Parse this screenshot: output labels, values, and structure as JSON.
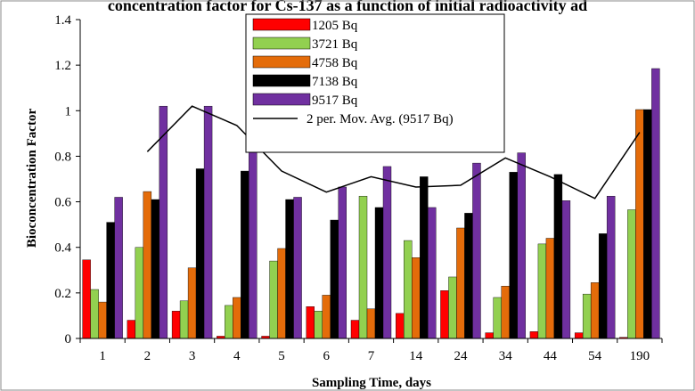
{
  "chart_data": {
    "type": "bar",
    "title": "concentration factor for Cs-137 as a function of initial radioactivity ad",
    "xlabel": "Sampling Time, days",
    "ylabel": "Bioconcentration Factor",
    "ylim": [
      0,
      1.4
    ],
    "yticks": [
      "0",
      "0.2",
      "0.4",
      "0.6",
      "0.8",
      "1",
      "1.2",
      "1.4"
    ],
    "grid": false,
    "legend_position": "top-center",
    "categories": [
      "1",
      "2",
      "3",
      "4",
      "5",
      "6",
      "7",
      "14",
      "24",
      "34",
      "44",
      "54",
      "190"
    ],
    "series": [
      {
        "name": "1205 Bq",
        "color": "#ff0000",
        "values": [
          0.345,
          0.08,
          0.12,
          0.01,
          0.01,
          0.14,
          0.08,
          0.11,
          0.21,
          0.025,
          0.03,
          0.025,
          0.005
        ]
      },
      {
        "name": "3721 Bq",
        "color": "#92d050",
        "values": [
          0.215,
          0.4,
          0.165,
          0.145,
          0.34,
          0.12,
          0.625,
          0.43,
          0.27,
          0.18,
          0.415,
          0.195,
          0.565
        ]
      },
      {
        "name": "4758 Bq",
        "color": "#e46c0a",
        "values": [
          0.16,
          0.645,
          0.31,
          0.18,
          0.395,
          0.19,
          0.13,
          0.355,
          0.485,
          0.23,
          0.44,
          0.245,
          1.005
        ]
      },
      {
        "name": "7138 Bq",
        "color": "#000000",
        "values": [
          0.51,
          0.61,
          0.745,
          0.735,
          0.61,
          0.52,
          0.575,
          0.71,
          0.55,
          0.73,
          0.72,
          0.46,
          1.005
        ]
      },
      {
        "name": "9517 Bq",
        "color": "#7030a0",
        "values": [
          0.62,
          1.02,
          1.02,
          0.85,
          0.62,
          0.665,
          0.755,
          0.575,
          0.77,
          0.815,
          0.605,
          0.625,
          1.185
        ]
      }
    ],
    "trendline": {
      "name": "2 per. Mov. Avg. (9517 Bq)",
      "color": "#000000",
      "values": [
        null,
        0.82,
        1.02,
        0.935,
        0.735,
        0.6425,
        0.71,
        0.665,
        0.6725,
        0.7925,
        0.71,
        0.615,
        0.905
      ]
    }
  }
}
